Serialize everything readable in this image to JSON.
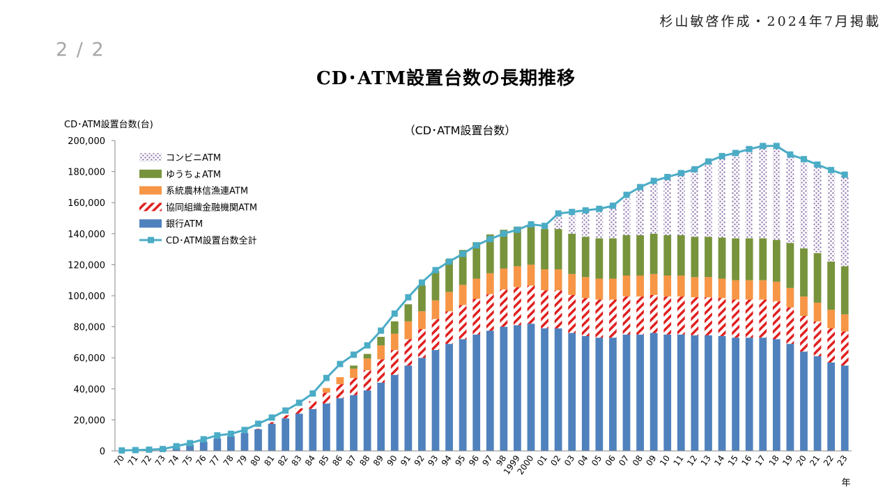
{
  "header": {
    "credit": "杉山敏啓作成・2024年7月掲載",
    "page_number": "2 / 2",
    "title": "CD･ATM設置台数の長期推移"
  },
  "chart_data": {
    "type": "bar",
    "subtitle": "（CD･ATM設置台数）",
    "ylabel": "CD･ATM設置台数(台)",
    "xlabel": "年",
    "ylim": [
      0,
      200000
    ],
    "yticks": [
      0,
      20000,
      40000,
      60000,
      80000,
      100000,
      120000,
      140000,
      160000,
      180000,
      200000
    ],
    "ytick_labels": [
      "0",
      "20,000",
      "40,000",
      "60,000",
      "80,000",
      "100,000",
      "120,000",
      "140,000",
      "160,000",
      "180,000",
      "200,000"
    ],
    "grid": false,
    "legend_position": "top-left",
    "stacked": true,
    "categories": [
      "70",
      "71",
      "72",
      "73",
      "74",
      "75",
      "76",
      "77",
      "78",
      "79",
      "80",
      "81",
      "82",
      "83",
      "84",
      "85",
      "86",
      "87",
      "88",
      "89",
      "90",
      "91",
      "92",
      "93",
      "94",
      "95",
      "96",
      "97",
      "98",
      "1999",
      "2000",
      "01",
      "02",
      "03",
      "04",
      "05",
      "06",
      "07",
      "08",
      "09",
      "10",
      "11",
      "12",
      "13",
      "14",
      "15",
      "16",
      "17",
      "18",
      "19",
      "20",
      "21",
      "22",
      "23"
    ],
    "series": [
      {
        "name": "銀行ATM",
        "kind": "bar",
        "color": "#4f81bd",
        "pattern": "solid",
        "values": [
          300,
          500,
          800,
          1200,
          2500,
          4000,
          6000,
          8000,
          9500,
          11500,
          14000,
          17500,
          21000,
          24000,
          27000,
          30500,
          34000,
          36000,
          39000,
          44000,
          49000,
          55000,
          60000,
          65000,
          69000,
          72000,
          75000,
          77500,
          80000,
          81000,
          82000,
          79000,
          79000,
          76000,
          74000,
          73000,
          73000,
          75000,
          75000,
          76000,
          75000,
          75000,
          74500,
          74500,
          74000,
          73000,
          73000,
          73000,
          72000,
          69000,
          64000,
          61000,
          57000,
          55000
        ]
      },
      {
        "name": "協同組織金融機関ATM",
        "kind": "bar",
        "color": "#e02020",
        "pattern": "hatch",
        "values": [
          0,
          0,
          0,
          0,
          0,
          0,
          0,
          0,
          0,
          0,
          300,
          1000,
          2000,
          3500,
          5000,
          7000,
          9000,
          11000,
          13000,
          15000,
          16000,
          17000,
          18500,
          20000,
          21000,
          22000,
          23000,
          23500,
          24000,
          24500,
          24500,
          24500,
          24500,
          24500,
          24500,
          24500,
          24500,
          24500,
          24500,
          24500,
          24500,
          24500,
          24500,
          24500,
          24500,
          24500,
          24500,
          24500,
          24500,
          23500,
          23000,
          22500,
          22000,
          22000
        ]
      },
      {
        "name": "系統農林信漁連ATM",
        "kind": "bar",
        "color": "#f79646",
        "pattern": "solid",
        "values": [
          0,
          0,
          0,
          0,
          0,
          0,
          0,
          0,
          0,
          0,
          0,
          0,
          0,
          0,
          0,
          3000,
          4500,
          6000,
          7500,
          9000,
          10500,
          11500,
          11500,
          12000,
          12500,
          13000,
          13000,
          13500,
          13500,
          13500,
          13500,
          13500,
          13500,
          13500,
          13500,
          13500,
          13500,
          13500,
          13500,
          13500,
          13500,
          13500,
          13000,
          13000,
          12500,
          12500,
          12500,
          12500,
          12500,
          12500,
          12500,
          12000,
          12000,
          11000
        ]
      },
      {
        "name": "ゆうちょATM",
        "kind": "bar",
        "color": "#77933c",
        "pattern": "solid",
        "values": [
          0,
          0,
          0,
          0,
          0,
          0,
          0,
          0,
          0,
          0,
          0,
          0,
          0,
          0,
          0,
          0,
          0,
          2000,
          3000,
          5500,
          8000,
          11000,
          16500,
          19000,
          21000,
          22500,
          23500,
          25000,
          25000,
          25500,
          26000,
          26000,
          26000,
          26000,
          26000,
          26000,
          26000,
          26000,
          26000,
          26000,
          26000,
          26000,
          26000,
          26000,
          26500,
          27000,
          27000,
          27000,
          27000,
          29000,
          31000,
          32000,
          31000,
          31000
        ]
      },
      {
        "name": "コンビニATM",
        "kind": "bar",
        "color": "#8064a2",
        "pattern": "dots",
        "values": [
          0,
          0,
          0,
          0,
          0,
          0,
          0,
          0,
          0,
          0,
          0,
          0,
          0,
          0,
          0,
          0,
          0,
          0,
          0,
          0,
          0,
          0,
          0,
          0,
          0,
          0,
          0,
          0,
          0,
          0,
          0,
          3000,
          10000,
          14000,
          17000,
          19000,
          22000,
          27000,
          31000,
          34500,
          37500,
          40500,
          44500,
          48500,
          53500,
          56000,
          59000,
          60000,
          60000,
          56000,
          57000,
          57000,
          57000,
          58000
        ]
      },
      {
        "name": "CD･ATM設置台数全計",
        "kind": "line",
        "color": "#4bacc6",
        "values": [
          300,
          500,
          800,
          1200,
          3000,
          5000,
          7500,
          10000,
          11000,
          13500,
          17500,
          21500,
          26000,
          31000,
          37000,
          47000,
          56000,
          62000,
          68000,
          77500,
          88500,
          99000,
          108500,
          116500,
          122000,
          127000,
          132500,
          136500,
          140000,
          142500,
          146000,
          145000,
          153000,
          154000,
          155000,
          156000,
          158000,
          165000,
          170000,
          174000,
          176500,
          179000,
          181500,
          186500,
          190000,
          192000,
          194500,
          196500,
          196500,
          191000,
          188000,
          184500,
          181000,
          178000
        ]
      }
    ]
  }
}
